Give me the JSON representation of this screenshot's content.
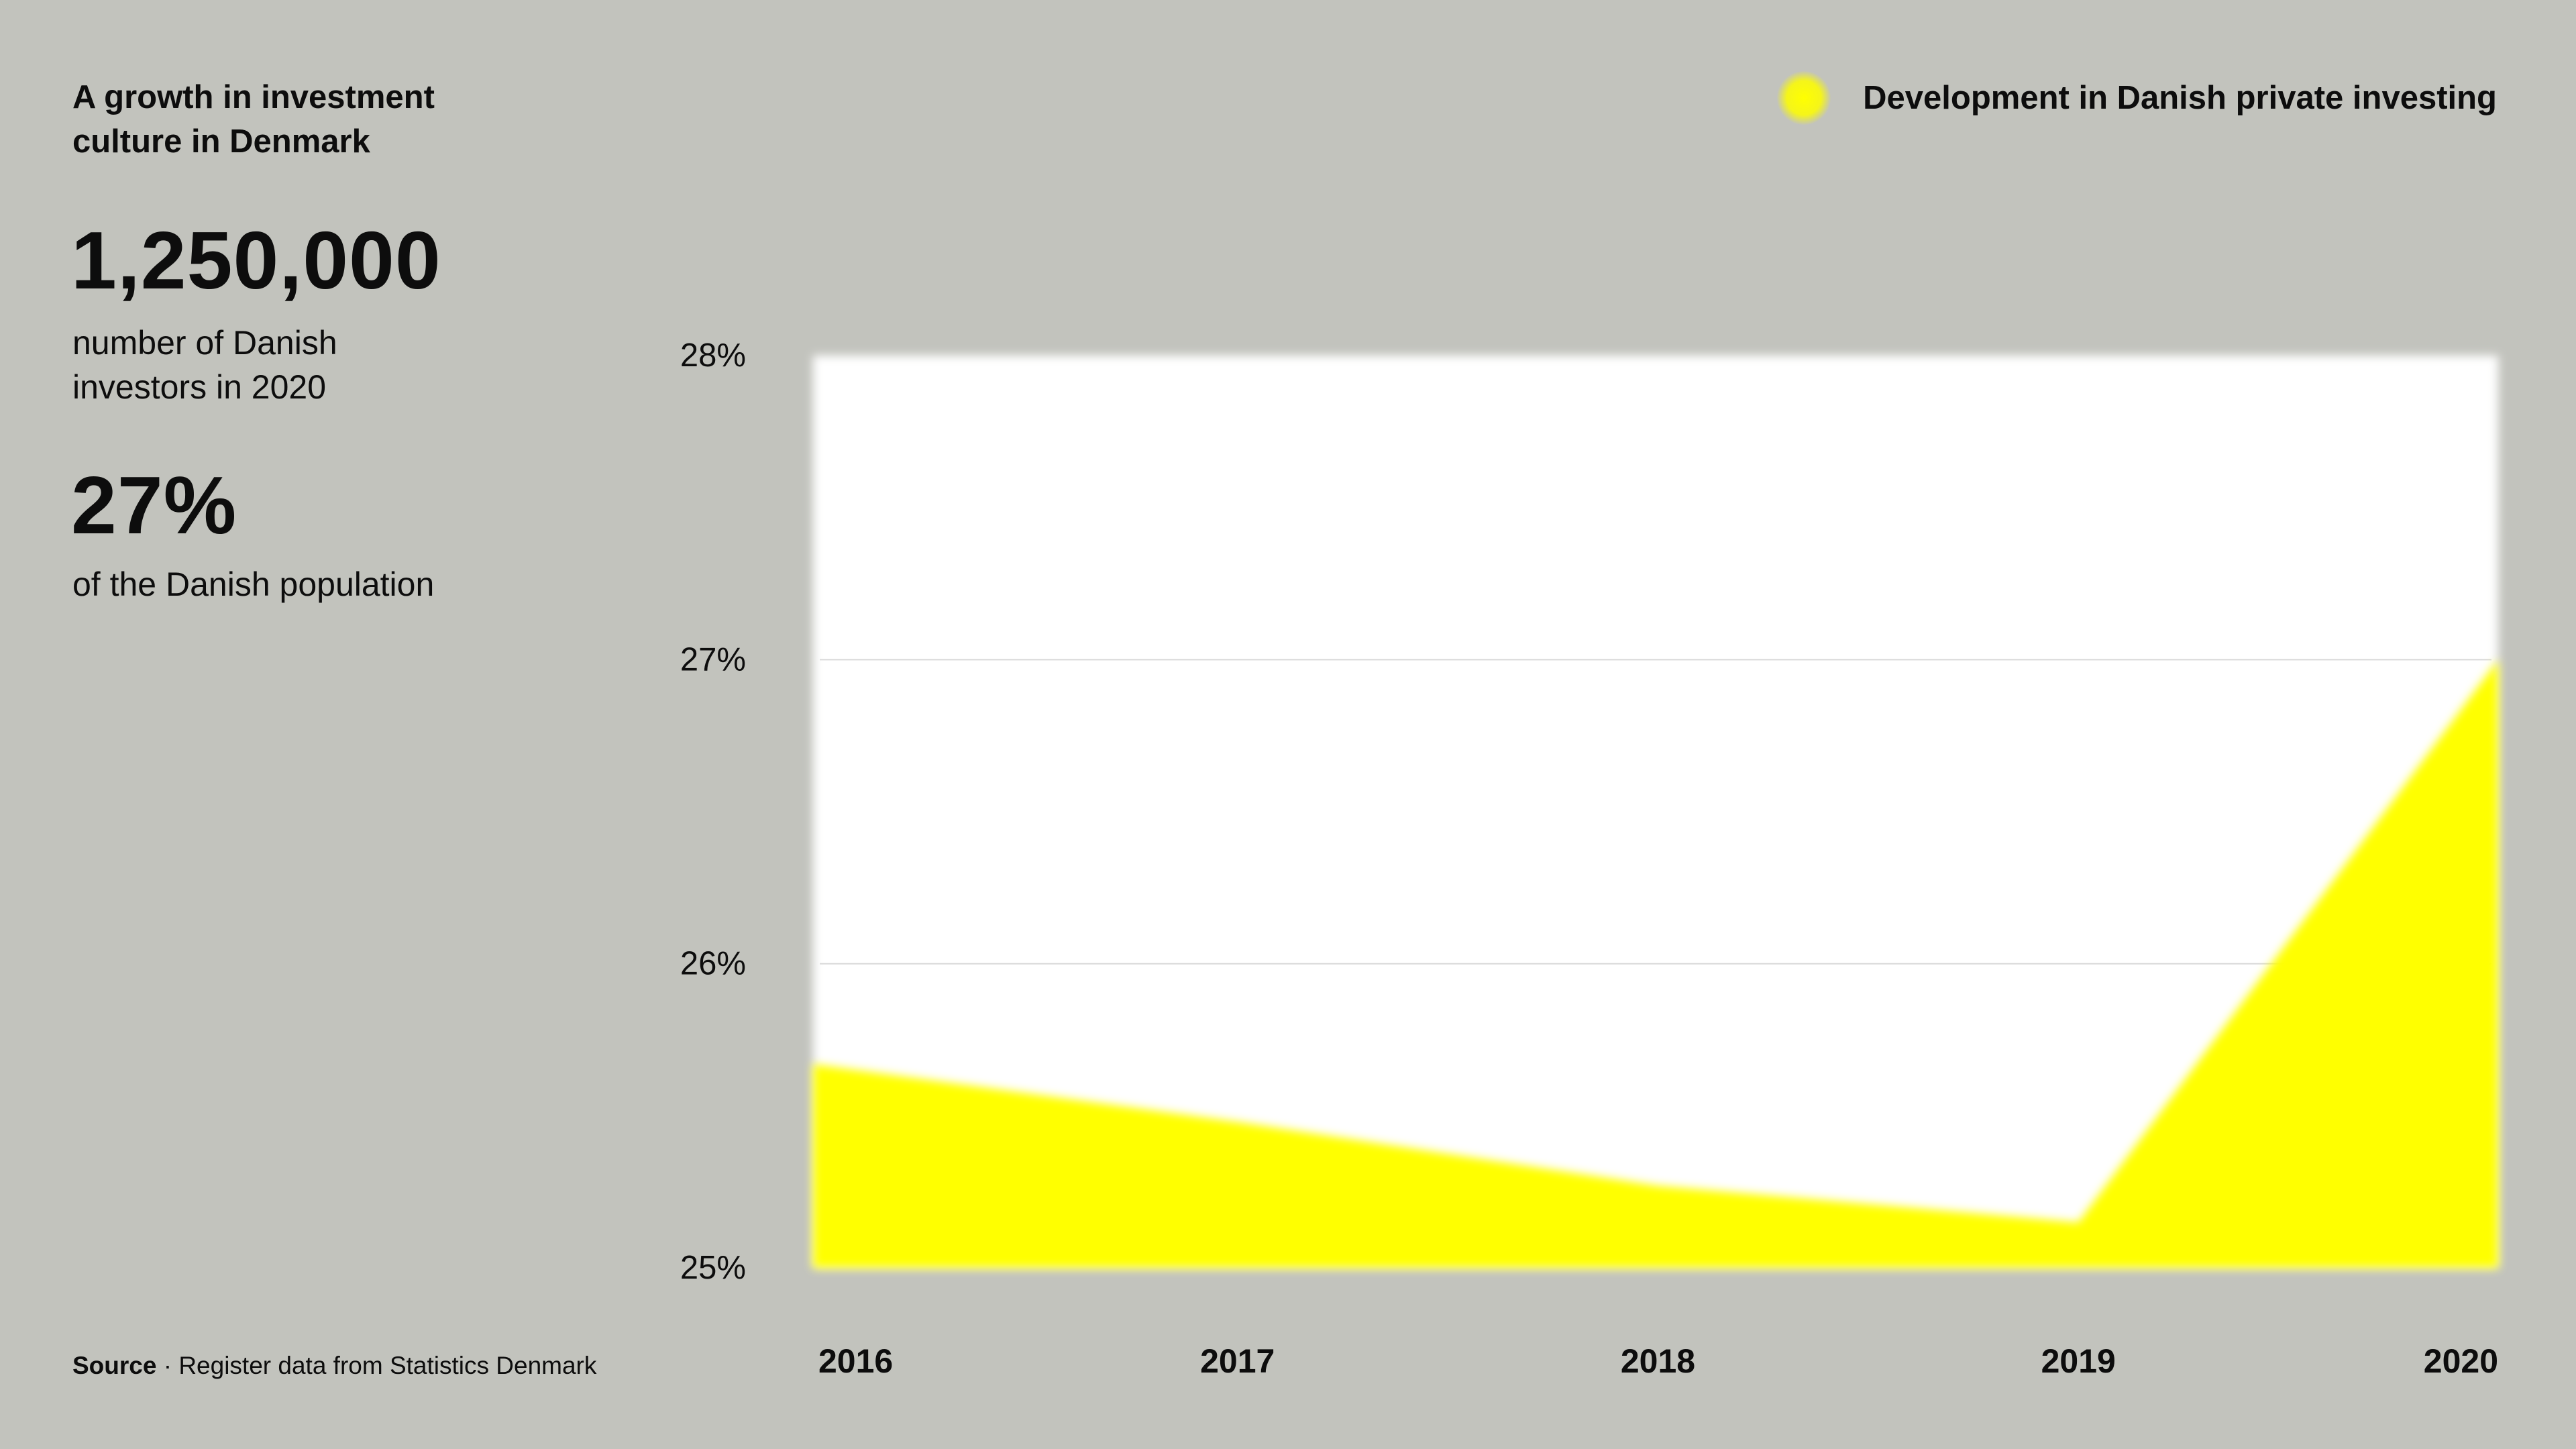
{
  "headline": "A growth in investment culture in Denmark",
  "stats": [
    {
      "value": "1,250,000",
      "description": "number of Danish investors in 2020"
    },
    {
      "value": "27%",
      "description": "of the Danish population"
    }
  ],
  "source": {
    "label": "Source",
    "separator": " · ",
    "text": "Register data from Statistics Denmark"
  },
  "legend": {
    "label": "Development in Danish private investing",
    "color": "#ffff00"
  },
  "chart_data": {
    "type": "area",
    "x": [
      "2016",
      "2017",
      "2018",
      "2019",
      "2020"
    ],
    "series": [
      {
        "name": "Development in Danish private investing",
        "values": [
          25.67,
          25.48,
          25.27,
          25.15,
          27.0
        ]
      }
    ],
    "y_ticks": [
      "28%",
      "27%",
      "26%",
      "25%"
    ],
    "y_tick_values": [
      28,
      27,
      26,
      25
    ],
    "ylim": [
      25,
      28
    ],
    "grid": true,
    "legend_position": "top-right",
    "colors": {
      "fill": "#ffff00",
      "plot_background": "#ffffff",
      "grid": "#d8d8d8",
      "page_background": "#c2c3bd"
    }
  }
}
